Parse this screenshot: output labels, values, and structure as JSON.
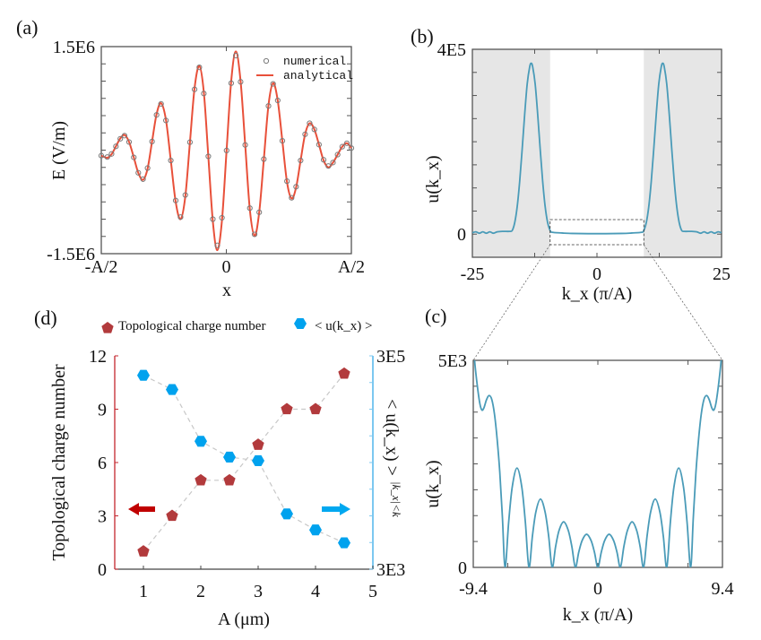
{
  "chart_data": [
    {
      "panel": "(a)",
      "type": "line",
      "xlabel": "x",
      "ylabel": "E (V/m)",
      "xlim": [
        -0.5,
        0.5
      ],
      "ylim": [
        -1500000.0,
        1500000.0
      ],
      "x_tick_labels": [
        "-A/2",
        "0",
        "A/2"
      ],
      "x_tick_values": [
        -0.5,
        0,
        0.5
      ],
      "y_tick_labels": [
        "1.5E6",
        "-1.5E6"
      ],
      "y_tick_values": [
        1500000.0,
        -1500000.0
      ],
      "legend": "top-right",
      "colors": {
        "numerical": "#7a7a7a",
        "analytical": "#e8503a"
      },
      "series": [
        {
          "name": "numerical",
          "style": "markers",
          "x": [
            -0.5,
            -0.476,
            -0.459,
            -0.4415,
            -0.424,
            -0.407,
            -0.389,
            -0.37,
            -0.352,
            -0.333,
            -0.315,
            -0.297,
            -0.279,
            -0.261,
            -0.2415,
            -0.222,
            -0.2025,
            -0.183,
            -0.164,
            -0.1455,
            -0.127,
            -0.108,
            -0.09,
            -0.072,
            -0.054,
            -0.036,
            -0.0175,
            0.001,
            0.0195,
            0.038,
            0.057,
            0.0755,
            0.094,
            0.113,
            0.1315,
            0.15,
            0.1685,
            0.187,
            0.2055,
            0.224,
            0.2425,
            0.261,
            0.279,
            0.297,
            0.315,
            0.333,
            0.352,
            0.3705,
            0.389,
            0.408,
            0.4265,
            0.445,
            0.4635,
            0.482,
            0.5
          ],
          "y": [
            -80000.0,
            -100000.0,
            -55000.0,
            55000.0,
            165000.0,
            210000.0,
            118000.0,
            -105000.0,
            -328000.0,
            -420000.0,
            -260000.0,
            125000.0,
            510000.0,
            670000.0,
            430000.0,
            -150000.0,
            -730000.0,
            -970000.0,
            -650000.0,
            115000.0,
            880000.0,
            1200000.0,
            820000.0,
            -90000.0,
            -1000000.0,
            -1380000.0,
            -980000.0,
            -5000.0,
            970000.0,
            1370000.0,
            990000.0,
            75000.0,
            -840000.0,
            -1220000.0,
            -900000.0,
            -130000.0,
            640000.0,
            960000.0,
            720000.0,
            135000.0,
            -450000.0,
            -690000.0,
            -530000.0,
            -150000.0,
            230000.0,
            390000.0,
            300000.0,
            80000.0,
            -140000.0,
            -230000.0,
            -180000.0,
            -65000.0,
            50000.0,
            100000.0,
            30000.0
          ]
        },
        {
          "name": "analytical",
          "style": "line",
          "x": [
            -0.5,
            -0.476,
            -0.459,
            -0.4415,
            -0.424,
            -0.407,
            -0.389,
            -0.37,
            -0.352,
            -0.333,
            -0.315,
            -0.297,
            -0.279,
            -0.261,
            -0.2415,
            -0.222,
            -0.2025,
            -0.183,
            -0.164,
            -0.1455,
            -0.127,
            -0.108,
            -0.09,
            -0.072,
            -0.054,
            -0.036,
            -0.0175,
            0.001,
            0.0195,
            0.038,
            0.057,
            0.0755,
            0.094,
            0.113,
            0.1315,
            0.15,
            0.1685,
            0.187,
            0.2055,
            0.224,
            0.2425,
            0.261,
            0.279,
            0.297,
            0.315,
            0.333,
            0.352,
            0.3705,
            0.389,
            0.408,
            0.4265,
            0.445,
            0.4635,
            0.482,
            0.5
          ],
          "y": [
            -80000.0,
            -110000.0,
            -60000.0,
            55000.0,
            170000.0,
            220000.0,
            120000.0,
            -105000.0,
            -330000.0,
            -430000.0,
            -270000.0,
            125000.0,
            520000.0,
            680000.0,
            440000.0,
            -150000.0,
            -750000.0,
            -1000000.0,
            -670000.0,
            115000.0,
            900000.0,
            1220000.0,
            840000.0,
            -90000.0,
            -1030000.0,
            -1450000.0,
            -1020000.0,
            -5000.0,
            1000000.0,
            1430000.0,
            1000000.0,
            75000.0,
            -860000.0,
            -1240000.0,
            -900000.0,
            -130000.0,
            650000.0,
            970000.0,
            720000.0,
            135000.0,
            -460000.0,
            -700000.0,
            -540000.0,
            -150000.0,
            230000.0,
            390000.0,
            300000.0,
            80000.0,
            -150000.0,
            -250000.0,
            -180000.0,
            -65000.0,
            50000.0,
            100000.0,
            30000.0
          ]
        }
      ]
    },
    {
      "panel": "(b)",
      "type": "line",
      "xlabel": "k_x (π/A)",
      "ylabel": "u(k_x)",
      "xlim": [
        -25,
        25
      ],
      "ylim": [
        -50000.0,
        400000.0
      ],
      "x_tick_labels": [
        "-25",
        "0",
        "25"
      ],
      "x_tick_values": [
        -25,
        0,
        25
      ],
      "y_tick_labels": [
        "4E5",
        "0"
      ],
      "y_tick_values": [
        400000.0,
        0
      ],
      "shaded_regions": [
        [
          -25,
          -9.4
        ],
        [
          9.4,
          25
        ]
      ],
      "zoom_box_x": [
        -9.4,
        9.4
      ],
      "colors": {
        "line": "#4a9bb8",
        "shade": "#e6e6e6"
      },
      "series": [
        {
          "x": [
            -25,
            -24.3,
            -23.6,
            -22.9,
            -22.2,
            -21.5,
            -20.8,
            -20,
            -19,
            -17.5,
            -17,
            -16.5,
            -16,
            -15.5,
            -15,
            -14.5,
            -14,
            -13.5,
            -13.2,
            -12.9,
            -12.4,
            -11.9,
            -11.4,
            -10.9,
            -10.4,
            -9.9,
            -9.4,
            -9,
            -7,
            -5,
            0,
            5,
            7,
            9,
            9.4,
            9.9,
            10.4,
            10.9,
            11.4,
            11.9,
            12.4,
            12.9,
            13.2,
            13.5,
            14,
            14.5,
            15,
            15.5,
            16,
            16.5,
            17,
            17.5,
            19,
            20,
            20.8,
            21.5,
            22.2,
            22.9,
            23.6,
            24.3,
            25
          ],
          "y": [
            3000,
            5000,
            2000,
            5000,
            2000,
            5000,
            2000,
            5000,
            6000,
            6000,
            8000,
            25000,
            60000,
            115000,
            185000,
            260000,
            325000,
            362000,
            370000,
            362000,
            325000,
            260000,
            185000,
            115000,
            60000,
            25000,
            8000,
            4000,
            2500,
            1500,
            1000,
            1500,
            2500,
            4000,
            8000,
            25000,
            60000,
            115000,
            185000,
            260000,
            325000,
            362000,
            370000,
            362000,
            325000,
            260000,
            185000,
            115000,
            60000,
            25000,
            8000,
            6000,
            6000,
            5000,
            2000,
            5000,
            2000,
            5000,
            2000,
            5000,
            3000
          ]
        }
      ]
    },
    {
      "panel": "(c)",
      "type": "line",
      "xlabel": "k_x (π/A)",
      "ylabel": "u(k_x)",
      "xlim": [
        -9.4,
        9.4
      ],
      "ylim": [
        0,
        5000.0
      ],
      "x_tick_labels": [
        "-9.4",
        "0",
        "9.4"
      ],
      "x_tick_values": [
        -9.4,
        0,
        9.4
      ],
      "y_tick_labels": [
        "5E3",
        "0"
      ],
      "y_tick_values": [
        5000.0,
        0
      ],
      "colors": {
        "line": "#4a9bb8"
      },
      "series": [
        {
          "x": [
            -9.4,
            -9.3,
            -9.1,
            -8.9,
            -8.75,
            -8.6,
            -8.4,
            -8.2,
            -8.0,
            -7.8,
            -7.6,
            -7.4,
            -7.2,
            -7.0,
            -6.73,
            -6.46,
            -6.1,
            -5.74,
            -5.47,
            -5.2,
            -4.94,
            -4.68,
            -4.33,
            -3.98,
            -3.71,
            -3.45,
            -3.19,
            -2.93,
            -2.58,
            -2.23,
            -1.96,
            -1.7,
            -1.445,
            -1.19,
            -0.85,
            -0.51,
            -0.255,
            0,
            0.255,
            0.51,
            0.85,
            1.19,
            1.445,
            1.7,
            1.96,
            2.23,
            2.58,
            2.93,
            3.19,
            3.45,
            3.71,
            3.98,
            4.33,
            4.68,
            4.94,
            5.2,
            5.47,
            5.74,
            6.1,
            6.46,
            6.73,
            7.0,
            7.2,
            7.4,
            7.6,
            7.8,
            8.0,
            8.2,
            8.4,
            8.6,
            8.75,
            8.9,
            9.1,
            9.3,
            9.4
          ],
          "y": [
            5600,
            5000,
            4400,
            3950,
            3800,
            3850,
            4050,
            4150,
            4050,
            3700,
            3100,
            2300,
            1200,
            0,
            1090,
            1942,
            2400,
            1942,
            1090,
            0,
            749,
            1335,
            1650,
            1335,
            749,
            0,
            500,
            890,
            1100,
            890,
            500,
            0,
            363,
            647,
            800,
            647,
            363,
            0,
            363,
            647,
            800,
            647,
            363,
            0,
            500,
            890,
            1100,
            890,
            500,
            0,
            749,
            1335,
            1650,
            1335,
            749,
            0,
            1090,
            1942,
            2400,
            1942,
            1090,
            0,
            1200,
            2300,
            3100,
            3700,
            4050,
            4150,
            4050,
            3850,
            3800,
            3950,
            4400,
            5000,
            5600
          ]
        }
      ]
    },
    {
      "panel": "(d)",
      "type": "scatter",
      "xlabel": "A (μm)",
      "ylabel": "Topological charge number",
      "y2label": "< u(k_x) >",
      "y2label_subscript": "|k_x|<k",
      "xlim": [
        0.5,
        5
      ],
      "ylim": [
        0,
        12
      ],
      "y2lim": [
        3000.0,
        300000.0
      ],
      "y2_scale": "log",
      "x_tick_labels": [
        "1",
        "2",
        "3",
        "4",
        "5"
      ],
      "x_tick_values": [
        1,
        2,
        3,
        4,
        5
      ],
      "y_tick_labels": [
        "0",
        "3",
        "6",
        "9",
        "12"
      ],
      "y_tick_values": [
        0,
        3,
        6,
        9,
        12
      ],
      "y2_tick_labels": [
        "3E5",
        "3E3"
      ],
      "y2_tick_values": [
        300000.0,
        3000.0
      ],
      "legend": "top",
      "colors": {
        "charge": "#b23a3c",
        "charge_text": "#c4262e",
        "u": "#00a2ee",
        "connector": "#c8c8c8"
      },
      "series": [
        {
          "name": "Topological charge number",
          "marker": "pentagon",
          "axis": "left",
          "x": [
            1,
            1.5,
            2,
            2.5,
            3,
            3.5,
            4,
            4.5
          ],
          "y": [
            1,
            3,
            5,
            5,
            7,
            9,
            9,
            11
          ]
        },
        {
          "name": "< u(k_x) >",
          "marker": "hexagon",
          "axis": "right",
          "x": [
            1,
            1.5,
            2,
            2.5,
            3,
            3.5,
            4,
            4.5
          ],
          "y": [
            197000,
            145000,
            47500,
            33700,
            31200,
            9900,
            7000,
            5300
          ]
        }
      ]
    }
  ]
}
